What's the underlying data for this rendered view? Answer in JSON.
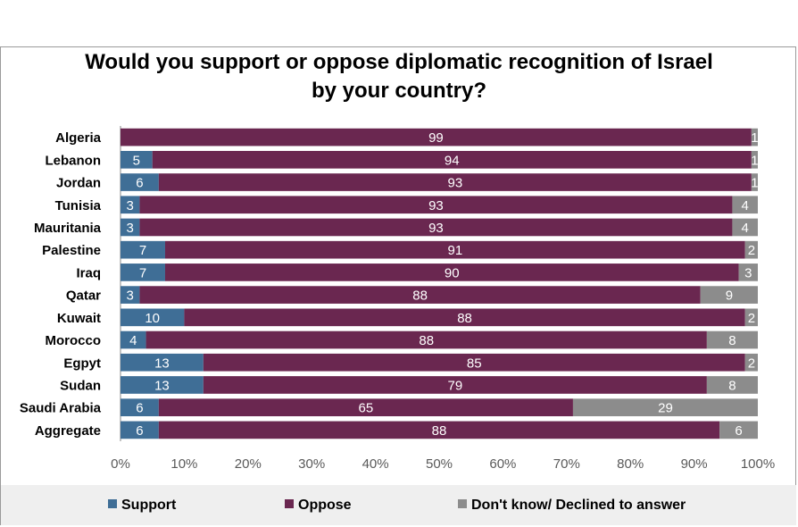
{
  "chart_data": {
    "type": "bar",
    "orientation": "horizontal",
    "stacked": "percent",
    "title": "Would you support or oppose diplomatic recognition of Israel\nby your country?",
    "categories": [
      "Algeria",
      "Lebanon",
      "Jordan",
      "Tunisia",
      "Mauritania",
      "Palestine",
      "Iraq",
      "Qatar",
      "Kuwait",
      "Morocco",
      "Egpyt",
      "Sudan",
      "Saudi Arabia",
      "Aggregate"
    ],
    "series": [
      {
        "name": "Support",
        "color": "#3f6e96",
        "values": [
          0,
          5,
          6,
          3,
          3,
          7,
          7,
          3,
          10,
          4,
          13,
          13,
          6,
          6
        ],
        "labels": [
          "",
          "5",
          "6",
          "3",
          "3",
          "7",
          "7",
          "3",
          "10",
          "4",
          "13",
          "13",
          "6",
          "6"
        ]
      },
      {
        "name": "Oppose",
        "color": "#6a2750",
        "values": [
          99,
          94,
          93,
          93,
          93,
          91,
          90,
          88,
          88,
          88,
          85,
          79,
          65,
          88
        ],
        "labels": [
          "99",
          "94",
          "93",
          "93",
          "93",
          "91",
          "90",
          "88",
          "88",
          "88",
          "85",
          "79",
          "65",
          "88"
        ]
      },
      {
        "name": "Don't know/ Declined to answer",
        "color": "#8c8c8c",
        "values": [
          1,
          1,
          1,
          4,
          4,
          2,
          3,
          9,
          2,
          8,
          2,
          8,
          29,
          6
        ],
        "labels": [
          "1",
          "1",
          "1",
          "4",
          "4",
          "2",
          "3",
          "9",
          "2",
          "8",
          "2",
          "8",
          "29",
          "6"
        ]
      }
    ],
    "xlim": [
      0,
      100
    ],
    "xticks": [
      "0%",
      "10%",
      "20%",
      "30%",
      "40%",
      "50%",
      "60%",
      "70%",
      "80%",
      "90%",
      "100%"
    ],
    "grid": false,
    "legend_position": "bottom"
  }
}
